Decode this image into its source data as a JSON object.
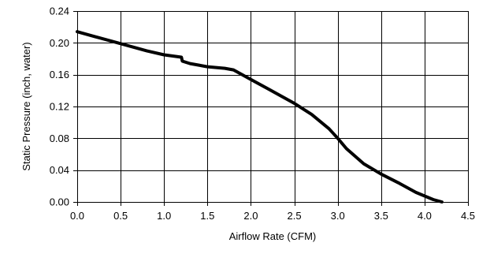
{
  "chart_data": {
    "type": "line",
    "title": "",
    "xlabel": "Airflow Rate (CFM)",
    "ylabel": "Static Pressure (inch, water)",
    "xlim": [
      0.0,
      4.5
    ],
    "ylim": [
      0.0,
      0.24
    ],
    "x_ticks": [
      "0.0",
      "0.5",
      "1.0",
      "1.5",
      "2.0",
      "2.5",
      "3.0",
      "3.5",
      "4.0",
      "4.5"
    ],
    "y_ticks": [
      "0.00",
      "0.04",
      "0.08",
      "0.12",
      "0.16",
      "0.20",
      "0.24"
    ],
    "grid": true,
    "legend": "none",
    "line_color": "#000000",
    "series": [
      {
        "x": [
          0.0,
          0.2,
          0.5,
          0.8,
          1.0,
          1.2,
          1.21,
          1.3,
          1.5,
          1.7,
          1.8,
          2.0,
          2.2,
          2.5,
          2.7,
          2.9,
          3.0,
          3.1,
          3.3,
          3.5,
          3.7,
          3.9,
          4.1,
          4.2
        ],
        "y": [
          0.214,
          0.208,
          0.199,
          0.19,
          0.185,
          0.182,
          0.177,
          0.174,
          0.17,
          0.168,
          0.166,
          0.154,
          0.142,
          0.124,
          0.11,
          0.092,
          0.08,
          0.067,
          0.048,
          0.035,
          0.024,
          0.012,
          0.003,
          0.0
        ]
      }
    ]
  }
}
